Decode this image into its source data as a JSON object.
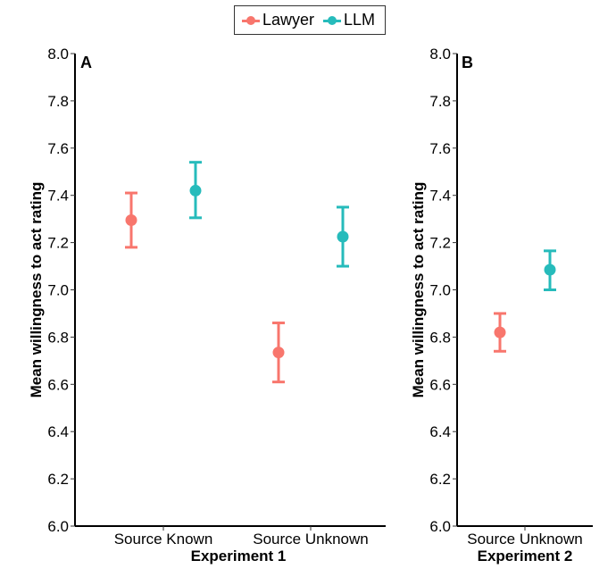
{
  "legend": {
    "items": [
      {
        "label": "Lawyer",
        "color": "#F8766D"
      },
      {
        "label": "LLM",
        "color": "#26BBBB"
      }
    ]
  },
  "chart_data": [
    {
      "type": "errorbar",
      "panel_label": "A",
      "xlabel": "Experiment 1",
      "ylabel": "Mean willingness to act rating",
      "ylim": [
        6.0,
        8.0
      ],
      "yticks": [
        "6.0",
        "6.2",
        "6.4",
        "6.6",
        "6.8",
        "7.0",
        "7.2",
        "7.4",
        "7.6",
        "7.8",
        "8.0"
      ],
      "categories": [
        "Source Known",
        "Source Unknown"
      ],
      "series": [
        {
          "name": "Lawyer",
          "color": "#F8766D",
          "values": [
            7.295,
            6.735
          ],
          "lower": [
            7.18,
            6.61
          ],
          "upper": [
            7.41,
            6.86
          ]
        },
        {
          "name": "LLM",
          "color": "#26BBBB",
          "values": [
            7.42,
            7.225
          ],
          "lower": [
            7.305,
            7.1
          ],
          "upper": [
            7.54,
            7.35
          ]
        }
      ]
    },
    {
      "type": "errorbar",
      "panel_label": "B",
      "xlabel": "Experiment 2",
      "ylabel": "Mean willingness to act rating",
      "ylim": [
        6.0,
        8.0
      ],
      "yticks": [
        "6.0",
        "6.2",
        "6.4",
        "6.6",
        "6.8",
        "7.0",
        "7.2",
        "7.4",
        "7.6",
        "7.8",
        "8.0"
      ],
      "categories": [
        "Source Unknown"
      ],
      "series": [
        {
          "name": "Lawyer",
          "color": "#F8766D",
          "values": [
            6.82
          ],
          "lower": [
            6.74
          ],
          "upper": [
            6.9
          ]
        },
        {
          "name": "LLM",
          "color": "#26BBBB",
          "values": [
            7.085
          ],
          "lower": [
            7.0
          ],
          "upper": [
            7.165
          ]
        }
      ]
    }
  ]
}
